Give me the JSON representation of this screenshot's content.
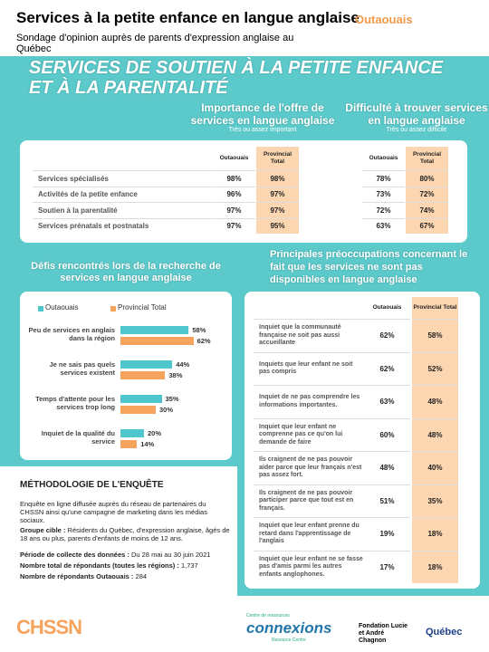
{
  "header": {
    "title": "Services à la petite enfance en langue anglaise",
    "region": "Outaouais",
    "subtitle": "Sondage d'opinion auprès de parents d'expression anglaise au Québec"
  },
  "banner": "SERVICES DE SOUTIEN À LA PETITE ENFANCE ET À LA PARENTALITÉ",
  "top_table": {
    "importance": {
      "title": "Importance de l'offre de services en langue anglaise",
      "subtitle": "Très ou assez important",
      "columns": [
        "Outaouais",
        "Provincial Total"
      ]
    },
    "difficulty": {
      "title": "Difficulté à trouver services en langue anglaise",
      "subtitle": "Très ou assez difficile",
      "columns": [
        "Outaouais",
        "Provincial Total"
      ]
    },
    "rows": [
      {
        "label": "Services spécialisés",
        "importance": [
          "98%",
          "98%"
        ],
        "difficulty": [
          "78%",
          "80%"
        ]
      },
      {
        "label": "Activités de la petite enfance",
        "importance": [
          "96%",
          "97%"
        ],
        "difficulty": [
          "73%",
          "72%"
        ]
      },
      {
        "label": "Soutien à la parentalité",
        "importance": [
          "97%",
          "97%"
        ],
        "difficulty": [
          "72%",
          "74%"
        ]
      },
      {
        "label": "Services prénatals et postnatals",
        "importance": [
          "97%",
          "95%"
        ],
        "difficulty": [
          "63%",
          "67%"
        ]
      }
    ]
  },
  "challenges": {
    "title": "Défis rencontrés lors de la recherche de services en langue anglaise",
    "categories": [
      "Peu de services en anglais dans la région",
      "Je ne sais pas quels services existent",
      "Temps d'attente pour les services trop long",
      "Inquiet de la qualité du service"
    ],
    "series": [
      {
        "name": "Outaouais",
        "color": "#4fc6cc",
        "values": [
          58,
          44,
          35,
          20
        ],
        "value_labels": [
          "58%",
          "44%",
          "35%",
          "20%"
        ]
      },
      {
        "name": "Provincial Total",
        "color": "#f6a35e",
        "values": [
          62,
          38,
          30,
          14
        ],
        "value_labels": [
          "62%",
          "38%",
          "30%",
          "14%"
        ]
      }
    ]
  },
  "methodology": {
    "title": "MÉTHODOLOGIE DE L'ENQUÊTE",
    "intro": "Enquête en ligne diffusée auprès du réseau de partenaires du CHSSN ainsi qu'une campagne de marketing dans les médias sociaux.",
    "items": [
      {
        "label": "Groupe cible :",
        "text": "Résidents du Québec, d'expression anglaise, âgés de 18 ans ou plus, parents d'enfants de moins de 12 ans."
      },
      {
        "label": "Période de collecte des données :",
        "text": "Du 28 mai au 30 juin 2021"
      },
      {
        "label": "Nombre total de répondants (toutes les régions) :",
        "text": "1,737"
      },
      {
        "label": "Nombre de répondants Outaouais :",
        "text": "284"
      }
    ]
  },
  "concerns": {
    "title": "Principales préoccupations concernant le fait que les services ne sont pas disponibles en langue anglaise",
    "columns": [
      "Outaouais",
      "Provincial Total"
    ],
    "rows": [
      {
        "label": "Inquiet que la communauté française ne soit pas aussi accueillante",
        "values": [
          "62%",
          "58%"
        ]
      },
      {
        "label": "Inquiets que leur enfant ne soit pas compris",
        "values": [
          "62%",
          "52%"
        ]
      },
      {
        "label": "Inquiet de ne pas comprendre les informations importantes.",
        "values": [
          "63%",
          "48%"
        ]
      },
      {
        "label": "Inquiet que leur enfant ne comprenne pas ce qu'on lui demande de faire",
        "values": [
          "60%",
          "48%"
        ]
      },
      {
        "label": "Ils craignent de ne pas pouvoir aider parce que leur français n'est pas assez fort.",
        "values": [
          "48%",
          "40%"
        ]
      },
      {
        "label": "Ils craignent de ne pas pouvoir participer parce que tout est en français.",
        "values": [
          "51%",
          "35%"
        ]
      },
      {
        "label": "Inquiet que leur enfant prenne du retard dans l'apprentissage de l'anglais",
        "values": [
          "19%",
          "18%"
        ]
      },
      {
        "label": "Inquiet que leur enfant ne se fasse pas d'amis parmi les autres enfants anglophones.",
        "values": [
          "17%",
          "18%"
        ]
      }
    ]
  },
  "footer": {
    "logo1": "CHSSN",
    "logo2_top": "Centre de ressources",
    "logo2": "connexions",
    "logo2_bottom": "Resource Centre",
    "logo3": "Fondation Lucie et André Chagnon",
    "logo4": "Québec"
  }
}
